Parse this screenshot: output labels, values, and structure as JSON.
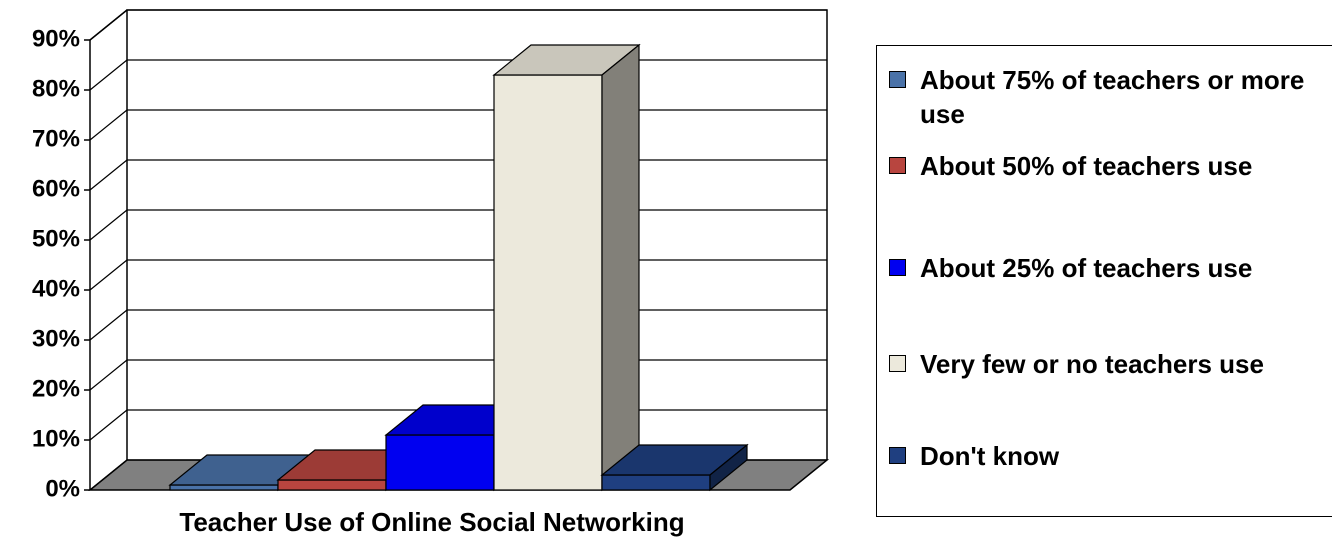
{
  "chart_data": {
    "type": "bar",
    "xlabel": "Teacher Use of Online Social Networking",
    "ylim": [
      0,
      90
    ],
    "yticks": [
      {
        "value": 0,
        "label": "0%"
      },
      {
        "value": 10,
        "label": "10%"
      },
      {
        "value": 20,
        "label": "20%"
      },
      {
        "value": 30,
        "label": "30%"
      },
      {
        "value": 40,
        "label": "40%"
      },
      {
        "value": 50,
        "label": "50%"
      },
      {
        "value": 60,
        "label": "60%"
      },
      {
        "value": 70,
        "label": "70%"
      },
      {
        "value": 80,
        "label": "80%"
      },
      {
        "value": 90,
        "label": "90%"
      }
    ],
    "grid": true,
    "legend": "right",
    "series": [
      {
        "name": "About 75% of teachers or more use",
        "color": "#4a72a8",
        "values": [
          1
        ]
      },
      {
        "name": "About 50% of teachers use",
        "color": "#b8453f",
        "values": [
          2
        ]
      },
      {
        "name": "About 25% of teachers use",
        "color": "#0000f0",
        "values": [
          11
        ]
      },
      {
        "name": "Very few or no teachers use",
        "color": "#ece9dc",
        "values": [
          83
        ]
      },
      {
        "name": "Don't know",
        "color": "#1f3f80",
        "values": [
          3
        ]
      }
    ]
  }
}
